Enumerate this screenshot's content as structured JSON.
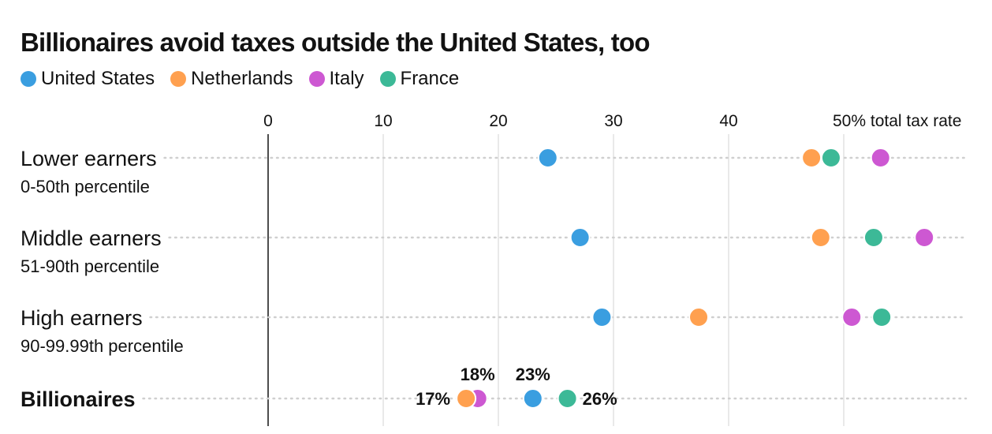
{
  "title": "Billionaires avoid taxes outside the United States, too",
  "legend": [
    {
      "label": "United States",
      "color": "#3a9ee0"
    },
    {
      "label": "Netherlands",
      "color": "#ffa04f"
    },
    {
      "label": "Italy",
      "color": "#cd58d2"
    },
    {
      "label": "France",
      "color": "#3cb997"
    }
  ],
  "chart_data": {
    "type": "scatter",
    "title": "Billionaires avoid taxes outside the United States, too",
    "x_ticks": [
      {
        "value": 0,
        "label": "0"
      },
      {
        "value": 10,
        "label": "10"
      },
      {
        "value": 20,
        "label": "20"
      },
      {
        "value": 30,
        "label": "30"
      },
      {
        "value": 40,
        "label": "40"
      },
      {
        "value": 50,
        "label": "50% total tax rate"
      }
    ],
    "xlim": [
      0,
      60
    ],
    "grid": true,
    "series_colors": {
      "United States": "#3a9ee0",
      "Netherlands": "#ffa04f",
      "Italy": "#cd58d2",
      "France": "#3cb997"
    },
    "rows": [
      {
        "label": "Lower earners",
        "sublabel": "0-50th percentile",
        "bold": false,
        "values": {
          "United States": 24.3,
          "Netherlands": 47.2,
          "Italy": 53.2,
          "France": 48.9
        }
      },
      {
        "label": "Middle earners",
        "sublabel": "51-90th percentile",
        "bold": false,
        "values": {
          "United States": 27.1,
          "Netherlands": 48.0,
          "Italy": 57.0,
          "France": 52.6
        }
      },
      {
        "label": "High earners",
        "sublabel": "90-99.99th percentile",
        "bold": false,
        "values": {
          "United States": 29.0,
          "Netherlands": 37.4,
          "Italy": 50.7,
          "France": 53.3
        }
      },
      {
        "label": "Billionaires",
        "sublabel": "",
        "bold": true,
        "values": {
          "United States": 23.0,
          "Netherlands": 17.2,
          "Italy": 18.2,
          "France": 26.0
        }
      }
    ],
    "annotations": [
      {
        "text": "17%",
        "row": "Billionaires",
        "series": "Netherlands",
        "position": "left"
      },
      {
        "text": "18%",
        "row": "Billionaires",
        "series": "Italy",
        "position": "above"
      },
      {
        "text": "23%",
        "row": "Billionaires",
        "series": "United States",
        "position": "above"
      },
      {
        "text": "26%",
        "row": "Billionaires",
        "series": "France",
        "position": "right"
      }
    ]
  }
}
